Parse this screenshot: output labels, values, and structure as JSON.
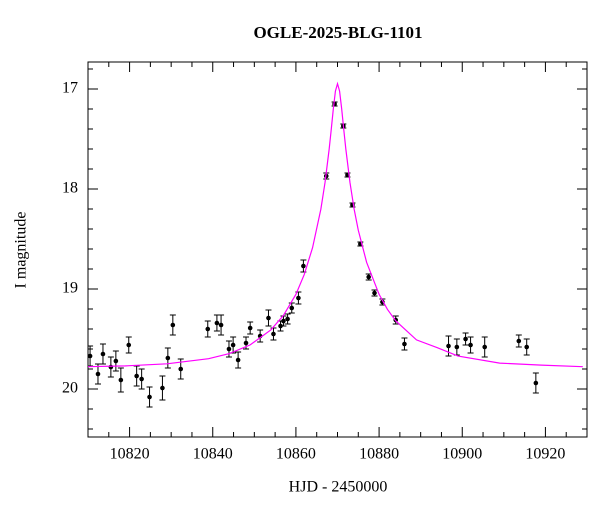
{
  "chart_data": {
    "type": "scatter",
    "title": "OGLE-2025-BLG-1101",
    "x_label": "HJD - 2450000",
    "y_label": "I magnitude",
    "xlim": [
      10810,
      10930
    ],
    "ylim": [
      20.48,
      16.73
    ],
    "xticks": [
      10820,
      10840,
      10860,
      10880,
      10900,
      10920
    ],
    "yticks": [
      17,
      18,
      19,
      20
    ],
    "x_minor_divisions": 4,
    "y_minor_divisions": 5,
    "series": [
      {
        "type": "scatter",
        "color": "#000000",
        "x": [
          10810.5,
          10812.4,
          10813.6,
          10815.5,
          10816.7,
          10817.9,
          10819.8,
          10821.7,
          10822.9,
          10824.8,
          10827.9,
          10829.2,
          10830.4,
          10832.3,
          10838.8,
          10841.0,
          10842.0,
          10843.9,
          10844.9,
          10846.1,
          10848.0,
          10849.0,
          10851.4,
          10853.4,
          10854.6,
          10856.3,
          10857.0,
          10858.0,
          10859.0,
          10860.6,
          10861.8,
          10867.3,
          10869.3,
          10871.4,
          10872.4,
          10873.6,
          10875.5,
          10877.5,
          10878.9,
          10880.8,
          10884.0,
          10886.1,
          10896.7,
          10898.7,
          10900.8,
          10902.0,
          10905.4,
          10913.6,
          10915.5,
          10917.7
        ],
        "values": [
          19.67,
          19.85,
          19.65,
          19.78,
          19.72,
          19.91,
          19.56,
          19.87,
          19.9,
          20.08,
          19.99,
          19.69,
          19.36,
          19.8,
          19.4,
          19.34,
          19.36,
          19.6,
          19.56,
          19.71,
          19.54,
          19.39,
          19.47,
          19.29,
          19.45,
          19.37,
          19.32,
          19.3,
          19.19,
          19.09,
          18.77,
          17.87,
          17.15,
          17.37,
          17.86,
          18.16,
          18.55,
          18.88,
          19.04,
          19.13,
          19.31,
          19.55,
          19.57,
          19.58,
          19.5,
          19.56,
          19.58,
          19.52,
          19.58,
          19.94
        ],
        "errors": [
          0.1,
          0.1,
          0.1,
          0.1,
          0.1,
          0.12,
          0.08,
          0.1,
          0.1,
          0.1,
          0.12,
          0.1,
          0.1,
          0.1,
          0.08,
          0.08,
          0.1,
          0.08,
          0.08,
          0.08,
          0.06,
          0.06,
          0.06,
          0.08,
          0.06,
          0.05,
          0.05,
          0.05,
          0.05,
          0.06,
          0.06,
          0.03,
          0.02,
          0.02,
          0.02,
          0.02,
          0.02,
          0.03,
          0.03,
          0.03,
          0.04,
          0.06,
          0.1,
          0.08,
          0.06,
          0.08,
          0.1,
          0.06,
          0.08,
          0.1
        ]
      },
      {
        "type": "line",
        "color": "#ff00ff",
        "x": [
          10809,
          10819,
          10829,
          10839,
          10844,
          10849,
          10854,
          10857,
          10860,
          10862,
          10864,
          10866,
          10867,
          10868,
          10868.5,
          10869,
          10869.5,
          10870,
          10870.5,
          10871,
          10871.5,
          10872,
          10873,
          10874,
          10875,
          10877,
          10880,
          10882,
          10884,
          10889,
          10894,
          10899,
          10909,
          10919,
          10929
        ],
        "values": [
          19.778,
          19.769,
          19.748,
          19.697,
          19.646,
          19.559,
          19.408,
          19.264,
          19.053,
          18.856,
          18.587,
          18.201,
          17.936,
          17.6,
          17.403,
          17.197,
          17.021,
          16.947,
          17.021,
          17.197,
          17.403,
          17.6,
          17.936,
          18.201,
          18.413,
          18.733,
          19.053,
          19.203,
          19.318,
          19.509,
          19.587,
          19.671,
          19.741,
          19.761,
          19.777
        ]
      }
    ]
  }
}
